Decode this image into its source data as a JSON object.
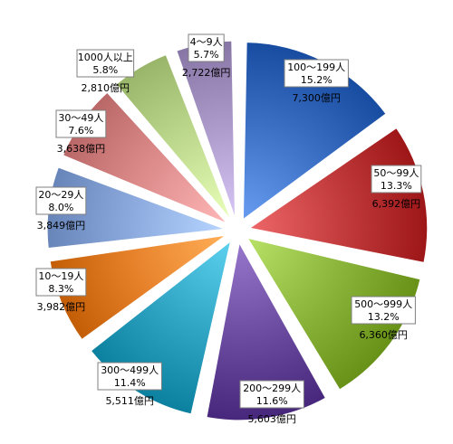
{
  "chart_data": {
    "type": "pie",
    "title": "",
    "legend": "none",
    "start_angle_deg": 0,
    "direction": "clockwise",
    "slices": [
      {
        "name": "100～199人",
        "percent": "15.2%",
        "amount": "7,300億円",
        "value": 7300,
        "color": "#3a6fc4"
      },
      {
        "name": "50～99人",
        "percent": "13.3%",
        "amount": "6,392億円",
        "value": 6392,
        "color": "#c0393b"
      },
      {
        "name": "500～999人",
        "percent": "13.2%",
        "amount": "6,360億円",
        "value": 6360,
        "color": "#8ab43a"
      },
      {
        "name": "200～299人",
        "percent": "11.6%",
        "amount": "5,603億円",
        "value": 5603,
        "color": "#6a4a9e"
      },
      {
        "name": "300～499人",
        "percent": "11.4%",
        "amount": "5,511億円",
        "value": 5511,
        "color": "#2fa3c2"
      },
      {
        "name": "10～19人",
        "percent": "8.3%",
        "amount": "3,982億円",
        "value": 3982,
        "color": "#e6812a"
      },
      {
        "name": "20～29人",
        "percent": "8.0%",
        "amount": "3,849億円",
        "value": 3849,
        "color": "#8aa8dc"
      },
      {
        "name": "30～49人",
        "percent": "7.6%",
        "amount": "3,638億円",
        "value": 3638,
        "color": "#dc8a8a"
      },
      {
        "name": "1000人以上",
        "percent": "5.8%",
        "amount": "2,810億円",
        "value": 2810,
        "color": "#bcd88c"
      },
      {
        "name": "4～9人",
        "percent": "5.7%",
        "amount": "2,722億円",
        "value": 2722,
        "color": "#aa98c8"
      }
    ]
  }
}
